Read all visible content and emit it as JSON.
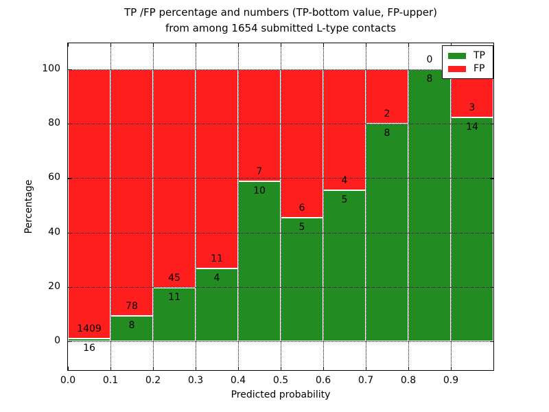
{
  "title": {
    "line1": "TP /FP percentage and numbers (TP-bottom value, FP-upper)",
    "line2": "from among 1654 submitted L-type contacts"
  },
  "chart_data": {
    "type": "bar",
    "stacked": true,
    "normalized_to_percent": true,
    "title": "TP /FP percentage and numbers (TP-bottom value, FP-upper) from among 1654 submitted L-type contacts",
    "total_contacts": 1654,
    "xlabel": "Predicted probability",
    "ylabel": "Percentage",
    "xlim": [
      0.0,
      1.0
    ],
    "ylim": [
      -10.6,
      109.6
    ],
    "grid": true,
    "grid_style": "dotted",
    "x_tick_values": [
      0.0,
      0.1,
      0.2,
      0.3,
      0.4,
      0.5,
      0.6,
      0.7,
      0.8,
      0.9
    ],
    "x_tick_labels": [
      "0.0",
      "0.1",
      "0.2",
      "0.3",
      "0.4",
      "0.5",
      "0.6",
      "0.7",
      "0.8",
      "0.9"
    ],
    "y_tick_values": [
      0,
      20,
      40,
      60,
      80,
      100
    ],
    "y_tick_labels": [
      "0",
      "20",
      "40",
      "60",
      "80",
      "100"
    ],
    "x_gridline_values": [
      0.1,
      0.2,
      0.3,
      0.4,
      0.5,
      0.6,
      0.7,
      0.8,
      0.9
    ],
    "bins": [
      {
        "x_start": 0.0,
        "x_end": 0.1,
        "tp": 16,
        "fp": 1409
      },
      {
        "x_start": 0.1,
        "x_end": 0.2,
        "tp": 8,
        "fp": 78
      },
      {
        "x_start": 0.2,
        "x_end": 0.3,
        "tp": 11,
        "fp": 45
      },
      {
        "x_start": 0.3,
        "x_end": 0.4,
        "tp": 4,
        "fp": 11
      },
      {
        "x_start": 0.4,
        "x_end": 0.5,
        "tp": 10,
        "fp": 7
      },
      {
        "x_start": 0.5,
        "x_end": 0.6,
        "tp": 5,
        "fp": 6
      },
      {
        "x_start": 0.6,
        "x_end": 0.7,
        "tp": 5,
        "fp": 4
      },
      {
        "x_start": 0.7,
        "x_end": 0.8,
        "tp": 8,
        "fp": 2
      },
      {
        "x_start": 0.8,
        "x_end": 0.9,
        "tp": 8,
        "fp": 0
      },
      {
        "x_start": 0.9,
        "x_end": 1.0,
        "tp": 14,
        "fp": 3
      }
    ],
    "legend": {
      "position": "upper right",
      "entries": [
        {
          "label": "TP",
          "color": "#228b22"
        },
        {
          "label": "FP",
          "color": "#ff1e1e"
        }
      ]
    },
    "colors": {
      "tp": "#228b22",
      "fp": "#ff1e1e",
      "grid": "#000000",
      "background": "#ffffff",
      "bar_edge": "#ffffff"
    }
  }
}
